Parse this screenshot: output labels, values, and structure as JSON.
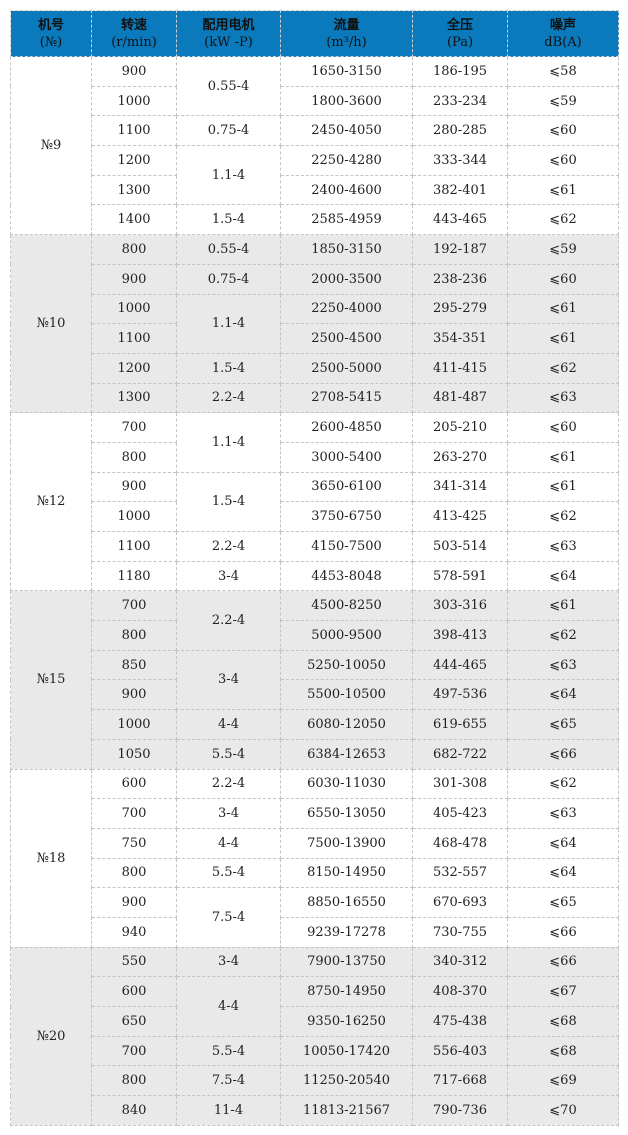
{
  "header": [
    [
      "机号",
      "(№)"
    ],
    [
      "转速",
      "(r/min)"
    ],
    [
      "配用电机",
      "(kW -P)"
    ],
    [
      "流量",
      "(m³/h)"
    ],
    [
      "全压",
      "(Pa)"
    ],
    [
      "噪声",
      "dB(A)"
    ]
  ],
  "colors": {
    "header_bg": "#0a7abc",
    "shade_bg": "#e9e9e9"
  },
  "groups": [
    {
      "model": "№9",
      "shaded": false,
      "motors": [
        [
          "0.55-4",
          2
        ],
        [
          "0.75-4",
          1
        ],
        [
          "1.1-4",
          2
        ],
        [
          "1.5-4",
          1
        ]
      ],
      "rows": [
        [
          "900",
          "1650-3150",
          "186-195",
          "⩽58"
        ],
        [
          "1000",
          "1800-3600",
          "233-234",
          "⩽59"
        ],
        [
          "1100",
          "2450-4050",
          "280-285",
          "⩽60"
        ],
        [
          "1200",
          "2250-4280",
          "333-344",
          "⩽60"
        ],
        [
          "1300",
          "2400-4600",
          "382-401",
          "⩽61"
        ],
        [
          "1400",
          "2585-4959",
          "443-465",
          "⩽62"
        ]
      ]
    },
    {
      "model": "№10",
      "shaded": true,
      "motors": [
        [
          "0.55-4",
          1
        ],
        [
          "0.75-4",
          1
        ],
        [
          "1.1-4",
          2
        ],
        [
          "1.5-4",
          1
        ],
        [
          "2.2-4",
          1
        ]
      ],
      "rows": [
        [
          "800",
          "1850-3150",
          "192-187",
          "⩽59"
        ],
        [
          "900",
          "2000-3500",
          "238-236",
          "⩽60"
        ],
        [
          "1000",
          "2250-4000",
          "295-279",
          "⩽61"
        ],
        [
          "1100",
          "2500-4500",
          "354-351",
          "⩽61"
        ],
        [
          "1200",
          "2500-5000",
          "411-415",
          "⩽62"
        ],
        [
          "1300",
          "2708-5415",
          "481-487",
          "⩽63"
        ]
      ]
    },
    {
      "model": "№12",
      "shaded": false,
      "motors": [
        [
          "1.1-4",
          2
        ],
        [
          "1.5-4",
          2
        ],
        [
          "2.2-4",
          1
        ],
        [
          "3-4",
          1
        ]
      ],
      "rows": [
        [
          "700",
          "2600-4850",
          "205-210",
          "⩽60"
        ],
        [
          "800",
          "3000-5400",
          "263-270",
          "⩽61"
        ],
        [
          "900",
          "3650-6100",
          "341-314",
          "⩽61"
        ],
        [
          "1000",
          "3750-6750",
          "413-425",
          "⩽62"
        ],
        [
          "1100",
          "4150-7500",
          "503-514",
          "⩽63"
        ],
        [
          "1180",
          "4453-8048",
          "578-591",
          "⩽64"
        ]
      ]
    },
    {
      "model": "№15",
      "shaded": true,
      "motors": [
        [
          "2.2-4",
          2
        ],
        [
          "3-4",
          2
        ],
        [
          "4-4",
          1
        ],
        [
          "5.5-4",
          1
        ]
      ],
      "rows": [
        [
          "700",
          "4500-8250",
          "303-316",
          "⩽61"
        ],
        [
          "800",
          "5000-9500",
          "398-413",
          "⩽62"
        ],
        [
          "850",
          "5250-10050",
          "444-465",
          "⩽63"
        ],
        [
          "900",
          "5500-10500",
          "497-536",
          "⩽64"
        ],
        [
          "1000",
          "6080-12050",
          "619-655",
          "⩽65"
        ],
        [
          "1050",
          "6384-12653",
          "682-722",
          "⩽66"
        ]
      ]
    },
    {
      "model": "№18",
      "shaded": false,
      "motors": [
        [
          "2.2-4",
          1
        ],
        [
          "3-4",
          1
        ],
        [
          "4-4",
          1
        ],
        [
          "5.5-4",
          1
        ],
        [
          "7.5-4",
          2
        ]
      ],
      "rows": [
        [
          "600",
          "6030-11030",
          "301-308",
          "⩽62"
        ],
        [
          "700",
          "6550-13050",
          "405-423",
          "⩽63"
        ],
        [
          "750",
          "7500-13900",
          "468-478",
          "⩽64"
        ],
        [
          "800",
          "8150-14950",
          "532-557",
          "⩽64"
        ],
        [
          "900",
          "8850-16550",
          "670-693",
          "⩽65"
        ],
        [
          "940",
          "9239-17278",
          "730-755",
          "⩽66"
        ]
      ]
    },
    {
      "model": "№20",
      "shaded": true,
      "motors": [
        [
          "3-4",
          1
        ],
        [
          "4-4",
          2
        ],
        [
          "5.5-4",
          1
        ],
        [
          "7.5-4",
          1
        ],
        [
          "11-4",
          1
        ]
      ],
      "rows": [
        [
          "550",
          "7900-13750",
          "340-312",
          "⩽66"
        ],
        [
          "600",
          "8750-14950",
          "408-370",
          "⩽67"
        ],
        [
          "650",
          "9350-16250",
          "475-438",
          "⩽68"
        ],
        [
          "700",
          "10050-17420",
          "556-403",
          "⩽68"
        ],
        [
          "800",
          "11250-20540",
          "717-668",
          "⩽69"
        ],
        [
          "840",
          "11813-21567",
          "790-736",
          "⩽70"
        ]
      ]
    }
  ]
}
